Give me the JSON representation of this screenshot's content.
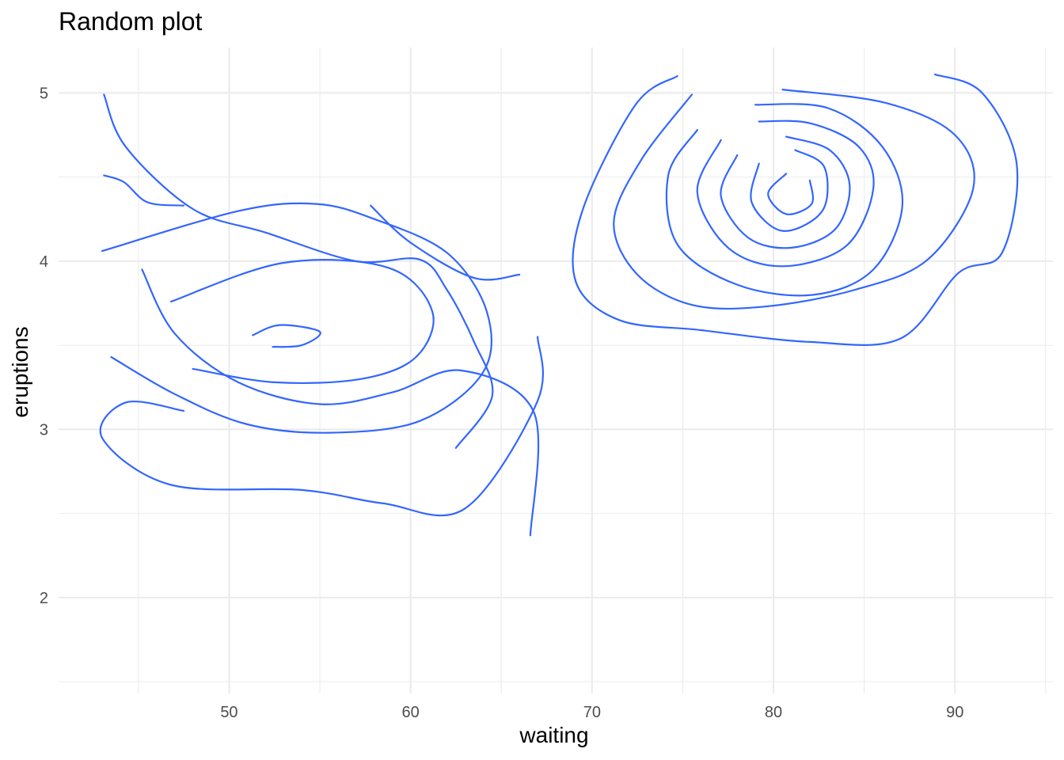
{
  "chart_data": {
    "type": "contour",
    "title": "Random plot",
    "xlabel": "waiting",
    "ylabel": "eruptions",
    "xlim": [
      40.6,
      95.4
    ],
    "ylim": [
      1.43,
      5.27
    ],
    "x_ticks": [
      50,
      60,
      70,
      80,
      90
    ],
    "y_ticks": [
      2,
      3,
      4,
      5
    ],
    "x_minor_ticks": [
      45,
      55,
      65,
      75,
      85,
      95
    ],
    "y_minor_ticks": [
      1.5,
      2.5,
      3.5,
      4.5
    ],
    "grid": true,
    "line_color": "#3366FF",
    "series": [
      {
        "points": [
          [
            43.1,
            4.99
          ],
          [
            44.3,
            4.68
          ],
          [
            48.0,
            4.31
          ],
          [
            52.0,
            4.17
          ],
          [
            57.0,
            4.0
          ],
          [
            60.5,
            4.01
          ],
          [
            62.0,
            3.83
          ],
          [
            63.5,
            3.52
          ],
          [
            64.5,
            3.2
          ],
          [
            62.5,
            2.89
          ]
        ]
      },
      {
        "points": [
          [
            43.1,
            4.51
          ],
          [
            44.2,
            4.47
          ],
          [
            45.5,
            4.35
          ],
          [
            47.5,
            4.33
          ]
        ]
      },
      {
        "points": [
          [
            57.8,
            4.33
          ],
          [
            60.0,
            4.11
          ],
          [
            63.5,
            3.9
          ],
          [
            66.0,
            3.92
          ]
        ]
      },
      {
        "points": [
          [
            67.0,
            3.55
          ],
          [
            67.0,
            3.17
          ],
          [
            63.0,
            2.53
          ],
          [
            58.5,
            2.56
          ],
          [
            54.0,
            2.64
          ],
          [
            46.8,
            2.67
          ],
          [
            43.0,
            2.95
          ],
          [
            44.3,
            3.16
          ],
          [
            47.5,
            3.11
          ]
        ]
      },
      {
        "points": [
          [
            45.2,
            3.95
          ],
          [
            47.0,
            3.57
          ],
          [
            50.5,
            3.28
          ],
          [
            55.0,
            3.15
          ],
          [
            59.0,
            3.22
          ],
          [
            62.8,
            3.35
          ],
          [
            66.8,
            3.1
          ],
          [
            66.6,
            2.37
          ]
        ]
      },
      {
        "points": [
          [
            43.0,
            4.06
          ],
          [
            50.6,
            4.3
          ],
          [
            54.8,
            4.34
          ],
          [
            58.0,
            4.25
          ],
          [
            62.0,
            4.05
          ],
          [
            64.2,
            3.7
          ],
          [
            64.0,
            3.34
          ],
          [
            60.5,
            3.05
          ],
          [
            55.5,
            2.98
          ],
          [
            51.0,
            3.03
          ],
          [
            47.0,
            3.21
          ],
          [
            43.5,
            3.43
          ]
        ]
      },
      {
        "points": [
          [
            46.8,
            3.76
          ],
          [
            53.0,
            3.99
          ],
          [
            58.8,
            3.96
          ],
          [
            61.2,
            3.7
          ],
          [
            60.3,
            3.43
          ],
          [
            57.3,
            3.3
          ],
          [
            52.5,
            3.28
          ],
          [
            48.0,
            3.36
          ]
        ]
      },
      {
        "points": [
          [
            51.3,
            3.56
          ],
          [
            52.8,
            3.62
          ],
          [
            55.0,
            3.58
          ],
          [
            54.0,
            3.5
          ],
          [
            52.4,
            3.49
          ]
        ]
      },
      {
        "points": [
          [
            74.7,
            5.1
          ],
          [
            72.4,
            4.93
          ],
          [
            69.5,
            4.31
          ],
          [
            69.1,
            3.88
          ],
          [
            71.5,
            3.65
          ],
          [
            76.0,
            3.59
          ],
          [
            82.0,
            3.52
          ],
          [
            87.0,
            3.54
          ],
          [
            90.2,
            3.93
          ],
          [
            92.6,
            4.05
          ],
          [
            93.4,
            4.58
          ],
          [
            91.5,
            5.0
          ],
          [
            88.9,
            5.11
          ]
        ]
      },
      {
        "points": [
          [
            75.5,
            4.99
          ],
          [
            72.7,
            4.6
          ],
          [
            71.2,
            4.23
          ],
          [
            72.5,
            3.92
          ],
          [
            75.5,
            3.74
          ],
          [
            79.5,
            3.73
          ],
          [
            84.5,
            3.83
          ],
          [
            88.5,
            4.01
          ],
          [
            91.0,
            4.43
          ],
          [
            90.0,
            4.75
          ],
          [
            86.2,
            4.94
          ],
          [
            80.5,
            5.02
          ]
        ]
      },
      {
        "points": [
          [
            75.8,
            4.78
          ],
          [
            74.2,
            4.51
          ],
          [
            74.7,
            4.1
          ],
          [
            78.0,
            3.86
          ],
          [
            82.2,
            3.8
          ],
          [
            85.5,
            3.95
          ],
          [
            87.1,
            4.33
          ],
          [
            86.0,
            4.68
          ],
          [
            83.0,
            4.91
          ],
          [
            79.0,
            4.93
          ]
        ]
      },
      {
        "points": [
          [
            77.1,
            4.72
          ],
          [
            75.8,
            4.41
          ],
          [
            77.5,
            4.08
          ],
          [
            80.5,
            3.97
          ],
          [
            84.0,
            4.09
          ],
          [
            85.5,
            4.43
          ],
          [
            84.7,
            4.68
          ],
          [
            82.0,
            4.82
          ],
          [
            79.2,
            4.83
          ]
        ]
      },
      {
        "points": [
          [
            78.0,
            4.63
          ],
          [
            77.1,
            4.39
          ],
          [
            78.6,
            4.14
          ],
          [
            81.0,
            4.08
          ],
          [
            83.4,
            4.19
          ],
          [
            84.2,
            4.45
          ],
          [
            83.1,
            4.66
          ],
          [
            80.7,
            4.74
          ]
        ]
      },
      {
        "points": [
          [
            79.2,
            4.58
          ],
          [
            78.8,
            4.35
          ],
          [
            80.5,
            4.18
          ],
          [
            82.7,
            4.3
          ],
          [
            82.8,
            4.56
          ],
          [
            81.2,
            4.66
          ]
        ]
      },
      {
        "points": [
          [
            80.7,
            4.52
          ],
          [
            79.7,
            4.4
          ],
          [
            80.7,
            4.28
          ],
          [
            82.1,
            4.34
          ],
          [
            82.0,
            4.48
          ]
        ]
      }
    ]
  }
}
